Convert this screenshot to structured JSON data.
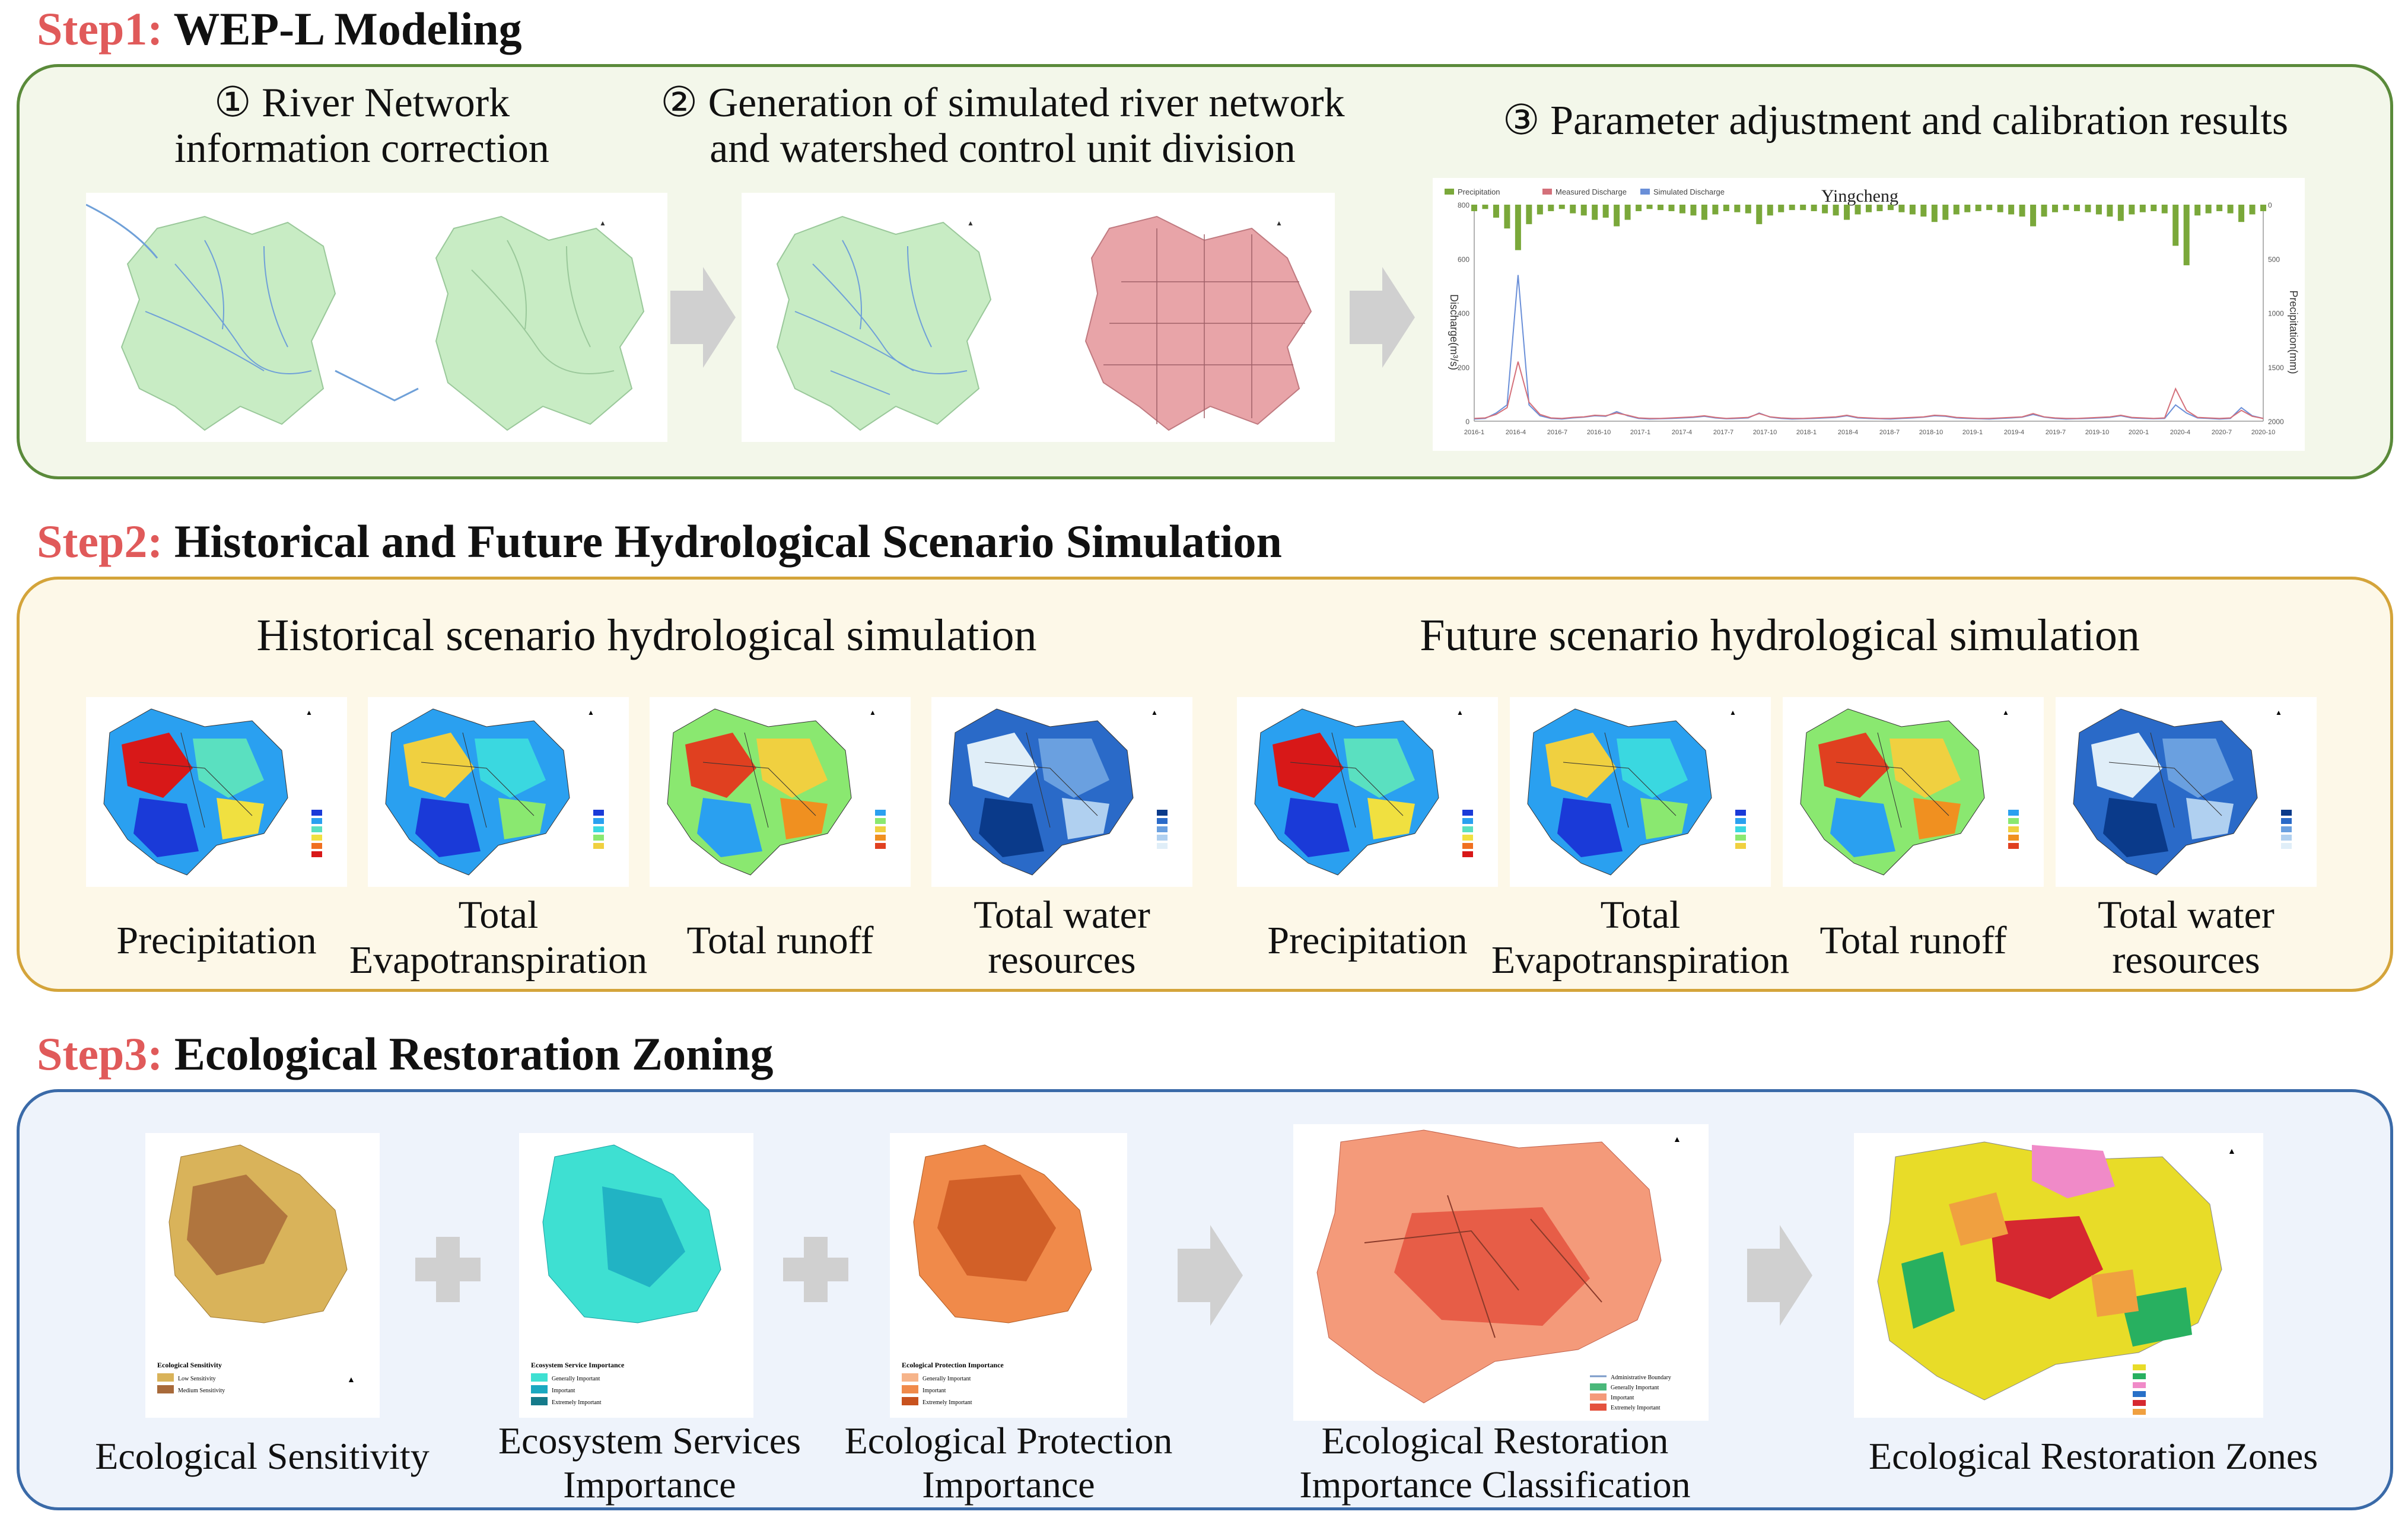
{
  "step1": {
    "num": "Step1:",
    "title": "WEP-L Modeling",
    "sub1": [
      "① River Network",
      "information correction"
    ],
    "sub2": [
      "② Generation of simulated river network",
      "and watershed control unit division"
    ],
    "sub3": "③ Parameter adjustment and calibration results",
    "chart_title": "Yingcheng",
    "chart_legend": [
      "Precipitation",
      "Measured Discharge",
      "Simulated Discharge"
    ],
    "chart_ylabel_left": "Discharge(m³/s)",
    "chart_ylabel_right": "Precipitation(mm)"
  },
  "step2": {
    "num": "Step2:",
    "title": "Historical and Future Hydrological Scenario Simulation",
    "hist_title": "Historical scenario hydrological simulation",
    "future_title": "Future scenario hydrological simulation",
    "hist_labels": [
      [
        "Precipitation"
      ],
      [
        "Total",
        "Evapotranspiration"
      ],
      [
        "Total runoff"
      ],
      [
        "Total water",
        "resources"
      ]
    ],
    "future_labels": [
      [
        "Precipitation"
      ],
      [
        "Total",
        "Evapotranspiration"
      ],
      [
        "Total runoff"
      ],
      [
        "Total water",
        "resources"
      ]
    ]
  },
  "step3": {
    "num": "Step3:",
    "title": "Ecological Restoration Zoning",
    "labels": [
      [
        "Ecological Sensitivity"
      ],
      [
        "Ecosystem Services",
        "Importance"
      ],
      [
        "Ecological Protection",
        "Importance"
      ],
      [
        "Ecological Restoration",
        "Importance Classification"
      ],
      [
        "Ecological Restoration Zones"
      ]
    ],
    "legend1_title": "Ecological Sensitivity",
    "legend1": [
      "Low Sensitivity",
      "Medium Sensitivity"
    ],
    "legend2_title": "Ecosystem Service Importance",
    "legend2": [
      "Generally Important",
      "Important",
      "Extremely Important"
    ],
    "legend3_title": "Ecological Protection Importance",
    "legend3": [
      "Generally Important",
      "Important",
      "Extremely Important"
    ],
    "legend4": [
      "Administrative Boundary",
      "Generally Important",
      "Important",
      "Extremely Important"
    ]
  },
  "chart_data": {
    "type": "line",
    "title": "Yingcheng",
    "xlabel": "",
    "ylabel": "Discharge(m³/s)",
    "y2label": "Precipitation(mm)",
    "x_ticks": [
      "2016-1",
      "2016-4",
      "2016-7",
      "2016-10",
      "2017-1",
      "2017-4",
      "2017-7",
      "2017-10",
      "2018-1",
      "2018-4",
      "2018-7",
      "2018-10",
      "2019-1",
      "2019-4",
      "2019-7",
      "2019-10",
      "2020-1",
      "2020-4",
      "2020-7",
      "2020-10"
    ],
    "ylim": [
      0,
      800
    ],
    "y_ticks": [
      0,
      200,
      400,
      600,
      800
    ],
    "y2_ticks": [
      0,
      500,
      1000,
      1500,
      2000
    ],
    "series": [
      {
        "name": "Measured Discharge",
        "color": "#6a8fd8",
        "values": [
          8,
          10,
          30,
          60,
          540,
          60,
          20,
          10,
          8,
          12,
          15,
          20,
          18,
          35,
          20,
          10,
          8,
          9,
          10,
          12,
          14,
          18,
          12,
          9,
          10,
          12,
          30,
          15,
          10,
          8,
          9,
          10,
          12,
          14,
          20,
          12,
          10,
          9,
          8,
          10,
          12,
          15,
          20,
          18,
          12,
          10,
          9,
          8,
          10,
          12,
          15,
          25,
          15,
          10,
          8,
          9,
          10,
          12,
          14,
          20,
          12,
          10,
          9,
          10,
          60,
          30,
          12,
          10,
          8,
          10,
          50,
          20,
          10
        ]
      },
      {
        "name": "Simulated Discharge",
        "color": "#d4707a",
        "values": [
          10,
          12,
          25,
          50,
          220,
          70,
          25,
          12,
          10,
          14,
          16,
          22,
          20,
          30,
          22,
          12,
          10,
          10,
          12,
          14,
          16,
          20,
          14,
          10,
          12,
          14,
          28,
          16,
          12,
          10,
          10,
          12,
          14,
          16,
          22,
          14,
          12,
          10,
          10,
          12,
          14,
          16,
          22,
          20,
          14,
          12,
          10,
          10,
          12,
          14,
          16,
          28,
          16,
          12,
          10,
          10,
          12,
          14,
          16,
          22,
          14,
          12,
          10,
          12,
          120,
          40,
          14,
          12,
          10,
          12,
          40,
          18,
          10
        ]
      },
      {
        "name": "Precipitation",
        "color": "#7aa83a",
        "values": [
          60,
          40,
          120,
          220,
          420,
          180,
          90,
          60,
          40,
          80,
          100,
          140,
          120,
          200,
          140,
          60,
          40,
          50,
          60,
          80,
          100,
          140,
          90,
          60,
          70,
          80,
          180,
          100,
          70,
          50,
          50,
          60,
          80,
          100,
          140,
          90,
          70,
          60,
          50,
          70,
          90,
          110,
          160,
          140,
          90,
          70,
          60,
          50,
          70,
          90,
          110,
          200,
          110,
          70,
          50,
          60,
          70,
          90,
          110,
          150,
          90,
          70,
          60,
          80,
          380,
          560,
          100,
          80,
          60,
          80,
          160,
          90,
          60
        ]
      }
    ]
  },
  "colors": {
    "step_red": "#e05a5a",
    "panel1_border": "#5a8a3a",
    "panel1_bg": "#f3f7ea",
    "panel2_border": "#d4a43a",
    "panel2_bg": "#fdf8e8",
    "panel3_border": "#3a6aa8",
    "panel3_bg": "#eef3fb",
    "map_green": "#c8ecc4",
    "map_pink": "#e8a4a8",
    "river": "#6fa0d8"
  }
}
